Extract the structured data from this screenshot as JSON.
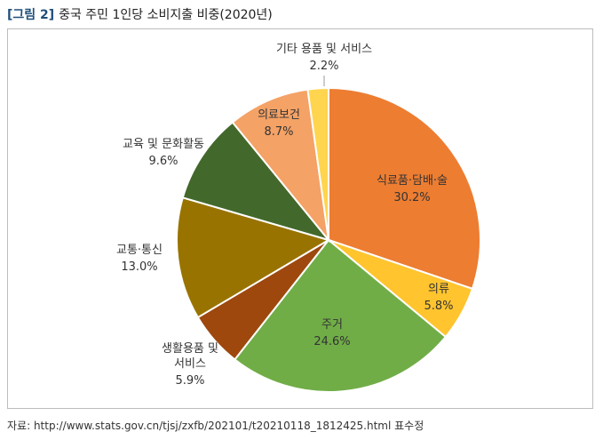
{
  "header": {
    "tag": "[그림 2]",
    "title": "중국 주민 1인당 소비지출 비중(2020년)"
  },
  "chart_data": {
    "type": "pie",
    "start_angle_deg": 0,
    "direction": "clockwise",
    "slices": [
      {
        "label": "식료품·담배·술",
        "value": 30.2,
        "value_text": "30.2%",
        "color": "#ED7D31"
      },
      {
        "label": "의류",
        "value": 5.8,
        "value_text": "5.8%",
        "color": "#FFC42E"
      },
      {
        "label": "주거",
        "value": 24.6,
        "value_text": "24.6%",
        "color": "#70AD47"
      },
      {
        "label": "생활용품 및\n서비스",
        "value": 5.9,
        "value_text": "5.9%",
        "color": "#9E480E"
      },
      {
        "label": "교통·통신",
        "value": 13.0,
        "value_text": "13.0%",
        "color": "#997300"
      },
      {
        "label": "교육 및 문화활동",
        "value": 9.6,
        "value_text": "9.6%",
        "color": "#43682B"
      },
      {
        "label": "의료보건",
        "value": 8.7,
        "value_text": "8.7%",
        "color": "#F4A266"
      },
      {
        "label": "기타 용품 및 서비스",
        "value": 2.2,
        "value_text": "2.2%",
        "color": "#FFD54F"
      }
    ]
  },
  "footer": {
    "source": "자료: http://www.stats.gov.cn/tjsj/zxfb/202101/t20210118_1812425.html 표수정"
  }
}
